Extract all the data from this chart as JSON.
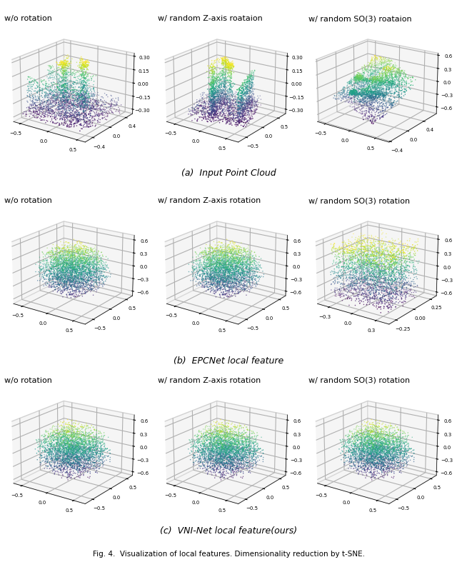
{
  "row_titles": [
    [
      "w/o rotation",
      "w/ random Z-axis roataion",
      "w/ random SO(3) roataion"
    ],
    [
      "w/o rotation",
      "w/ random Z-axis rotation",
      "w/ random SO(3) rotation"
    ],
    [
      "w/o rotation",
      "w/ random Z-axis rotation",
      "w/ random SO(3) rotation"
    ]
  ],
  "caption_a": "(a)  Input Point Cloud",
  "caption_b": "(b)  EPCNet local feature",
  "caption_c": "(c)  VNI-Net local feature(ours)",
  "fig_caption": "Fig. 4.  Visualization of local features. Dimensionality reduction by t-SNE.",
  "n_points": 3000,
  "seed": 42,
  "colormap": "viridis",
  "point_size": 1.2,
  "background_color": "#ffffff",
  "pane_color": [
    0.93,
    0.93,
    0.93,
    1.0
  ],
  "grid_color": "#c0c0c0",
  "title_fontsize": 8,
  "caption_fontsize": 9,
  "figcap_fontsize": 7.5,
  "tick_fontsize": 5,
  "elev": 20,
  "azim": -55
}
